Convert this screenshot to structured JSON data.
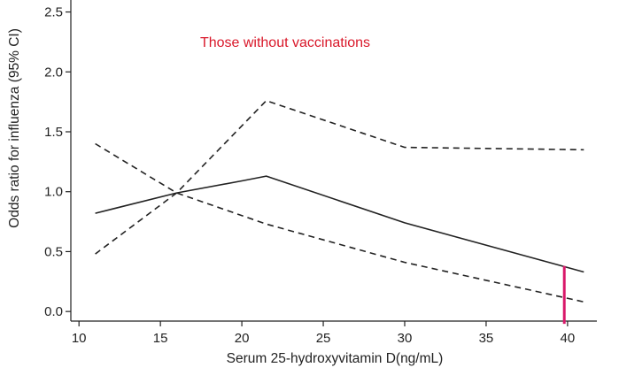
{
  "chart_data": {
    "type": "line",
    "annotation": "Those without vaccinations",
    "xlabel": "Serum 25-hydroxyvitamin D(ng/mL)",
    "ylabel": "Odds ratio for influenza (95% CI)",
    "xlim": [
      9.5,
      41.8
    ],
    "ylim": [
      -0.08,
      2.6
    ],
    "xticks": [
      10,
      15,
      20,
      25,
      30,
      35,
      40
    ],
    "yticks": [
      0.0,
      0.5,
      1.0,
      1.5,
      2.0,
      2.5
    ],
    "ytick_labels": [
      "0.0",
      "0.5",
      "1.0",
      "1.5",
      "2.0",
      "2.5"
    ],
    "series": [
      {
        "style": "solid",
        "x": [
          11,
          16,
          20,
          21.5,
          30,
          41
        ],
        "y": [
          0.82,
          0.99,
          1.09,
          1.13,
          0.74,
          0.33
        ]
      },
      {
        "style": "dashed",
        "x": [
          11,
          16,
          21.5,
          30,
          41
        ],
        "y": [
          0.48,
          0.99,
          1.76,
          1.37,
          1.35
        ]
      },
      {
        "style": "dashed",
        "x": [
          11,
          16,
          21.5,
          30,
          41
        ],
        "y": [
          1.4,
          0.99,
          0.73,
          0.41,
          0.08
        ]
      }
    ],
    "marker": {
      "x": 39.8,
      "y_from": 0.0,
      "y_to": 0.38
    },
    "colors": {
      "axis": "#222222",
      "line": "#222222",
      "annotation": "#d9182a",
      "marker": "#d9186a"
    }
  }
}
